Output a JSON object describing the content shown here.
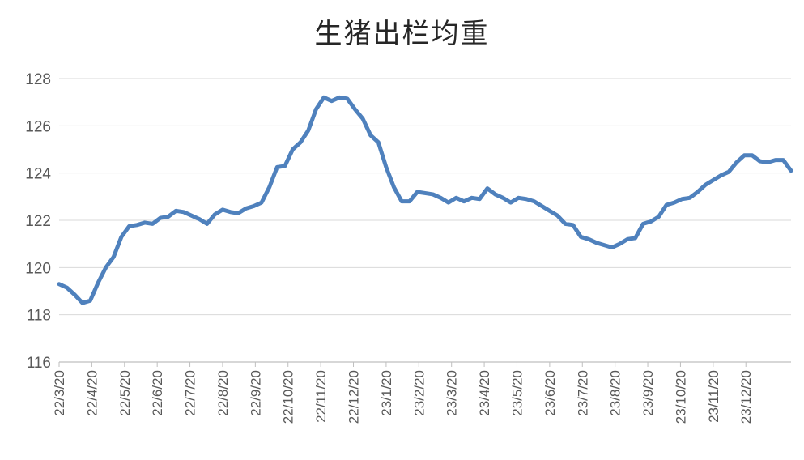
{
  "chart_data": {
    "type": "line",
    "title": "生猪出栏均重",
    "xlabel": "",
    "ylabel": "",
    "ylim": [
      116,
      128
    ],
    "yticks": [
      116,
      118,
      120,
      122,
      124,
      126,
      128
    ],
    "grid": true,
    "legend": "none",
    "line_color": "#4F81BD",
    "grid_color": "#D9D9D9",
    "x_tick_labels": [
      "22/3/20",
      "22/4/20",
      "22/5/20",
      "22/6/20",
      "22/7/20",
      "22/8/20",
      "22/9/20",
      "22/10/20",
      "22/11/20",
      "22/12/20",
      "23/1/20",
      "23/2/20",
      "23/3/20",
      "23/4/20",
      "23/5/20",
      "23/6/20",
      "23/7/20",
      "23/8/20",
      "23/9/20",
      "23/10/20",
      "23/11/20",
      "23/12/20"
    ],
    "series": [
      {
        "values": [
          119.3,
          119.15,
          118.85,
          118.5,
          118.6,
          119.35,
          120.0,
          120.45,
          121.3,
          121.75,
          121.8,
          121.9,
          121.85,
          122.1,
          122.15,
          122.4,
          122.35,
          122.2,
          122.05,
          121.85,
          122.25,
          122.45,
          122.35,
          122.3,
          122.5,
          122.6,
          122.75,
          123.4,
          124.25,
          124.3,
          125.0,
          125.3,
          125.8,
          126.7,
          127.2,
          127.05,
          127.2,
          127.15,
          126.7,
          126.3,
          125.6,
          125.3,
          124.25,
          123.4,
          122.8,
          122.8,
          123.2,
          123.15,
          123.1,
          122.95,
          122.75,
          122.95,
          122.8,
          122.95,
          122.9,
          123.35,
          123.1,
          122.95,
          122.75,
          122.95,
          122.9,
          122.8,
          122.6,
          122.4,
          122.2,
          121.85,
          121.8,
          121.3,
          121.2,
          121.05,
          120.95,
          120.85,
          121.0,
          121.2,
          121.25,
          121.85,
          121.95,
          122.15,
          122.65,
          122.75,
          122.9,
          122.95,
          123.2,
          123.5,
          123.7,
          123.9,
          124.05,
          124.45,
          124.75,
          124.75,
          124.5,
          124.45,
          124.55,
          124.55,
          124.1
        ]
      }
    ]
  }
}
